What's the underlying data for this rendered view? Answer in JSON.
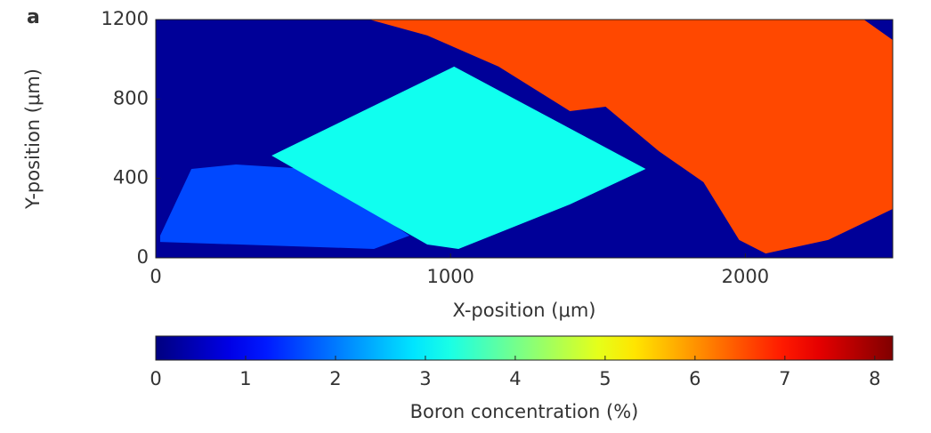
{
  "chart_data": {
    "type": "heatmap",
    "panel_label": "a",
    "xlabel": "X-position (μm)",
    "ylabel": "Y-position (μm)",
    "xlim": [
      0,
      2500
    ],
    "ylim": [
      0,
      1200
    ],
    "xticks": [
      0,
      1000,
      2000
    ],
    "yticks": [
      0,
      400,
      800,
      1200
    ],
    "colormap": "jet",
    "clim": [
      0,
      8.2
    ],
    "cticks": [
      0,
      1,
      2,
      3,
      4,
      5,
      6,
      7,
      8
    ],
    "colorbar_label": "Boron concentration (%)",
    "background_value": 0.2,
    "regions": [
      {
        "value": 1.6,
        "x": [
          15,
          121,
          272,
          514,
          861,
          740,
          15
        ],
        "y": [
          112,
          448,
          470,
          448,
          112,
          45,
          80
        ]
      },
      {
        "value": 3.2,
        "x": [
          393,
          1012,
          1662,
          1405,
          1027,
          921
        ],
        "y": [
          515,
          963,
          448,
          269,
          45,
          67
        ]
      },
      {
        "value": 6.6,
        "x": [
          725,
          2402,
          2500,
          2500,
          2281,
          2069,
          1979,
          1858,
          1707,
          1526,
          1405,
          1163,
          921
        ],
        "y": [
          1200,
          1200,
          1097,
          246,
          90,
          22,
          90,
          381,
          537,
          761,
          739,
          963,
          1120
        ]
      }
    ]
  }
}
